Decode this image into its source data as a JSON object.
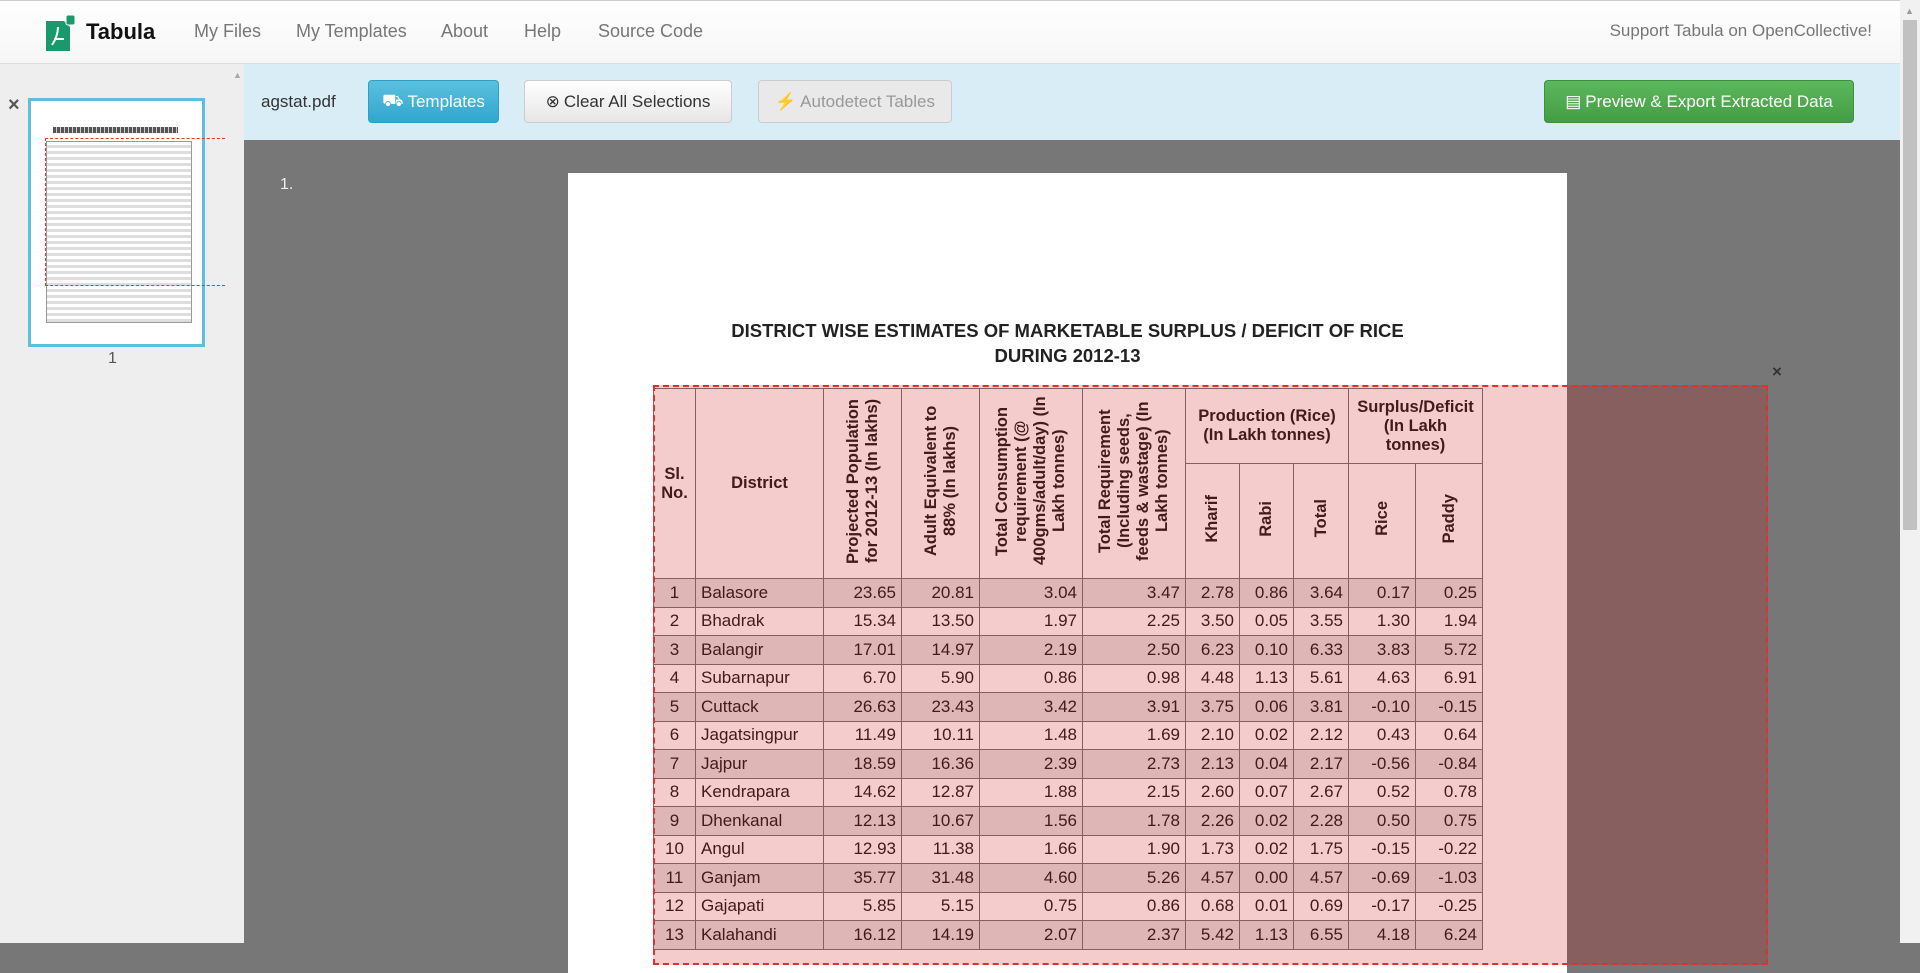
{
  "header": {
    "brand": "Tabula",
    "nav": [
      "My Files",
      "My Templates",
      "About",
      "Help",
      "Source Code"
    ],
    "support": "Support Tabula on OpenCollective!"
  },
  "sidebar": {
    "close_icon": "×",
    "thumbnail_page": "1"
  },
  "toolbar": {
    "filename": "agstat.pdf",
    "templates": "Templates",
    "clear": "Clear All Selections",
    "autodetect": "Autodetect Tables",
    "export": "Preview & Export Extracted Data"
  },
  "main": {
    "page_label": "1.",
    "selection_close": "×"
  },
  "document": {
    "title_line1": "DISTRICT WISE ESTIMATES OF MARKETABLE SURPLUS / DEFICIT OF RICE",
    "title_line2": "DURING 2012-13",
    "headers": {
      "sl": "Sl. No.",
      "district": "District",
      "pop": "Projected Population for 2012-13 (In lakhs)",
      "adult": "Adult Equivalent to 88% (In lakhs)",
      "consumption": "Total Consumption requirement (@ 400gms/adult/day) (In Lakh tonnes)",
      "requirement": "Total Requirement (Including seeds, feeds & wastage) (In Lakh tonnes)",
      "production": "Production (Rice) (In Lakh tonnes)",
      "surplus": "Surplus/Deficit (In Lakh tonnes)",
      "kharif": "Kharif",
      "rabi": "Rabi",
      "total": "Total",
      "rice": "Rice",
      "paddy": "Paddy"
    },
    "rows": [
      [
        "1",
        "Balasore",
        "23.65",
        "20.81",
        "3.04",
        "3.47",
        "2.78",
        "0.86",
        "3.64",
        "0.17",
        "0.25"
      ],
      [
        "2",
        "Bhadrak",
        "15.34",
        "13.50",
        "1.97",
        "2.25",
        "3.50",
        "0.05",
        "3.55",
        "1.30",
        "1.94"
      ],
      [
        "3",
        "Balangir",
        "17.01",
        "14.97",
        "2.19",
        "2.50",
        "6.23",
        "0.10",
        "6.33",
        "3.83",
        "5.72"
      ],
      [
        "4",
        "Subarnapur",
        "6.70",
        "5.90",
        "0.86",
        "0.98",
        "4.48",
        "1.13",
        "5.61",
        "4.63",
        "6.91"
      ],
      [
        "5",
        "Cuttack",
        "26.63",
        "23.43",
        "3.42",
        "3.91",
        "3.75",
        "0.06",
        "3.81",
        "-0.10",
        "-0.15"
      ],
      [
        "6",
        "Jagatsingpur",
        "11.49",
        "10.11",
        "1.48",
        "1.69",
        "2.10",
        "0.02",
        "2.12",
        "0.43",
        "0.64"
      ],
      [
        "7",
        "Jajpur",
        "18.59",
        "16.36",
        "2.39",
        "2.73",
        "2.13",
        "0.04",
        "2.17",
        "-0.56",
        "-0.84"
      ],
      [
        "8",
        "Kendrapara",
        "14.62",
        "12.87",
        "1.88",
        "2.15",
        "2.60",
        "0.07",
        "2.67",
        "0.52",
        "0.78"
      ],
      [
        "9",
        "Dhenkanal",
        "12.13",
        "10.67",
        "1.56",
        "1.78",
        "2.26",
        "0.02",
        "2.28",
        "0.50",
        "0.75"
      ],
      [
        "10",
        "Angul",
        "12.93",
        "11.38",
        "1.66",
        "1.90",
        "1.73",
        "0.02",
        "1.75",
        "-0.15",
        "-0.22"
      ],
      [
        "11",
        "Ganjam",
        "35.77",
        "31.48",
        "4.60",
        "5.26",
        "4.57",
        "0.00",
        "4.57",
        "-0.69",
        "-1.03"
      ],
      [
        "12",
        "Gajapati",
        "5.85",
        "5.15",
        "0.75",
        "0.86",
        "0.68",
        "0.01",
        "0.69",
        "-0.17",
        "-0.25"
      ],
      [
        "13",
        "Kalahandi",
        "16.12",
        "14.19",
        "2.07",
        "2.37",
        "5.42",
        "1.13",
        "6.55",
        "4.18",
        "6.24"
      ]
    ]
  },
  "colors": {
    "accent": "#5bc0de",
    "export": "#5cb85c",
    "selection": "#e03030",
    "toolbar_bg": "#d9edf7"
  }
}
